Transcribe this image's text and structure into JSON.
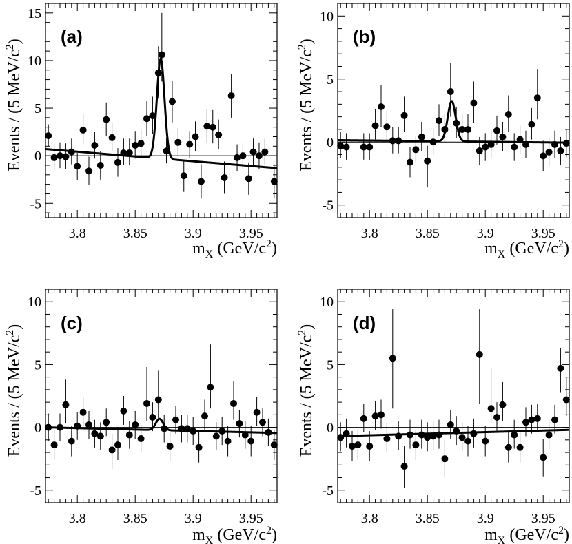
{
  "figure": {
    "ylabel_main": "Events / (5 MeV/c",
    "ylabel_sup": "2",
    "ylabel_close": ")",
    "xlabel_main": "m",
    "xlabel_sub": "X",
    "xlabel_rest": " (GeV/c",
    "xlabel_sup": "2",
    "xlabel_close": ")"
  },
  "chart_data": [
    {
      "type": "scatter",
      "title": "(a)",
      "xlabel": "m_X (GeV/c^2)",
      "ylabel": "Events / (5 MeV/c^2)",
      "xlim": [
        3.7725,
        3.9725
      ],
      "ylim": [
        -6.5,
        16
      ],
      "xticks": [
        "3.8",
        "3.85",
        "3.9",
        "3.95"
      ],
      "yticks": [
        "-5",
        "0",
        "5",
        "10",
        "15"
      ],
      "points": [
        {
          "x": 3.775,
          "y": 2.1,
          "lo": 1.0,
          "hi": 3.3
        },
        {
          "x": 3.78,
          "y": -0.2,
          "lo": -1.5,
          "hi": 1.2
        },
        {
          "x": 3.785,
          "y": 0.0,
          "lo": -1.3,
          "hi": 1.4
        },
        {
          "x": 3.79,
          "y": -0.1,
          "lo": -1.4,
          "hi": 1.3
        },
        {
          "x": 3.795,
          "y": 0.4,
          "lo": -0.9,
          "hi": 1.8
        },
        {
          "x": 3.8,
          "y": -1.1,
          "lo": -2.6,
          "hi": 0.3
        },
        {
          "x": 3.805,
          "y": 2.7,
          "lo": 1.2,
          "hi": 4.4
        },
        {
          "x": 3.81,
          "y": -1.6,
          "lo": -3.1,
          "hi": -0.1
        },
        {
          "x": 3.815,
          "y": 1.1,
          "lo": -0.3,
          "hi": 2.5
        },
        {
          "x": 3.82,
          "y": -1.0,
          "lo": -2.5,
          "hi": 0.5
        },
        {
          "x": 3.825,
          "y": 3.8,
          "lo": 2.1,
          "hi": 5.6
        },
        {
          "x": 3.83,
          "y": 1.9,
          "lo": 0.5,
          "hi": 3.5
        },
        {
          "x": 3.835,
          "y": -0.7,
          "lo": -2.2,
          "hi": 0.8
        },
        {
          "x": 3.84,
          "y": 0.3,
          "lo": -1.0,
          "hi": 1.8
        },
        {
          "x": 3.845,
          "y": 0.3,
          "lo": -1.0,
          "hi": 1.8
        },
        {
          "x": 3.85,
          "y": 1.1,
          "lo": -0.3,
          "hi": 2.6
        },
        {
          "x": 3.855,
          "y": 1.3,
          "lo": -0.1,
          "hi": 2.8
        },
        {
          "x": 3.86,
          "y": 3.9,
          "lo": 2.1,
          "hi": 5.8
        },
        {
          "x": 3.865,
          "y": 4.2,
          "lo": 2.3,
          "hi": 6.2
        },
        {
          "x": 3.87,
          "y": 8.7,
          "lo": 6.0,
          "hi": 11.5
        },
        {
          "x": 3.873,
          "y": 10.6,
          "lo": 7.8,
          "hi": 15.0
        },
        {
          "x": 3.877,
          "y": 0.5,
          "lo": -0.8,
          "hi": 1.9
        },
        {
          "x": 3.882,
          "y": 5.7,
          "lo": 3.5,
          "hi": 7.9
        },
        {
          "x": 3.887,
          "y": 1.4,
          "lo": 0.0,
          "hi": 2.9
        },
        {
          "x": 3.892,
          "y": -2.1,
          "lo": -3.8,
          "hi": -0.4
        },
        {
          "x": 3.897,
          "y": 1.2,
          "lo": -0.2,
          "hi": 2.6
        },
        {
          "x": 3.902,
          "y": 2.0,
          "lo": 0.5,
          "hi": 3.6
        },
        {
          "x": 3.907,
          "y": -2.7,
          "lo": -4.5,
          "hi": -0.9
        },
        {
          "x": 3.912,
          "y": 3.1,
          "lo": 1.4,
          "hi": 4.9
        },
        {
          "x": 3.917,
          "y": 3.0,
          "lo": 1.3,
          "hi": 4.8
        },
        {
          "x": 3.922,
          "y": 2.2,
          "lo": 0.7,
          "hi": 3.8
        },
        {
          "x": 3.927,
          "y": -2.3,
          "lo": -4.0,
          "hi": -0.6
        },
        {
          "x": 3.933,
          "y": 6.3,
          "lo": 4.0,
          "hi": 8.6
        },
        {
          "x": 3.938,
          "y": -0.2,
          "lo": -1.6,
          "hi": 1.2
        },
        {
          "x": 3.943,
          "y": 0.0,
          "lo": -1.4,
          "hi": 1.4
        },
        {
          "x": 3.948,
          "y": -2.4,
          "lo": -4.1,
          "hi": -0.7
        },
        {
          "x": 3.952,
          "y": 0.4,
          "lo": -1.0,
          "hi": 1.8
        },
        {
          "x": 3.957,
          "y": 0.0,
          "lo": -1.4,
          "hi": 1.4
        },
        {
          "x": 3.962,
          "y": 0.4,
          "lo": -1.0,
          "hi": 1.8
        },
        {
          "x": 3.97,
          "y": -2.7,
          "lo": -4.5,
          "hi": -0.9
        }
      ],
      "fit": {
        "bg_a": 0.7,
        "bg_b": -1.3,
        "peak_amp": 10.5,
        "peak_mean": 3.872,
        "peak_sigma": 0.0033
      }
    },
    {
      "type": "scatter",
      "title": "(b)",
      "xlabel": "m_X (GeV/c^2)",
      "ylabel": "Events / (5 MeV/c^2)",
      "xlim": [
        3.7725,
        3.9725
      ],
      "ylim": [
        -6,
        11
      ],
      "xticks": [
        "3.8",
        "3.85",
        "3.9",
        "3.95"
      ],
      "yticks": [
        "-5",
        "0",
        "5",
        "10"
      ],
      "points": [
        {
          "x": 3.775,
          "y": -0.3,
          "lo": -1.3,
          "hi": 0.8
        },
        {
          "x": 3.78,
          "y": -0.4,
          "lo": -1.4,
          "hi": 0.7
        },
        {
          "x": 3.795,
          "y": -0.4,
          "lo": -1.4,
          "hi": 0.7
        },
        {
          "x": 3.8,
          "y": -0.4,
          "lo": -1.4,
          "hi": 0.7
        },
        {
          "x": 3.805,
          "y": 1.3,
          "lo": 0.2,
          "hi": 2.6
        },
        {
          "x": 3.81,
          "y": 2.8,
          "lo": 1.2,
          "hi": 4.5
        },
        {
          "x": 3.815,
          "y": 1.2,
          "lo": 0.1,
          "hi": 2.5
        },
        {
          "x": 3.82,
          "y": 0.1,
          "lo": -0.9,
          "hi": 1.2
        },
        {
          "x": 3.825,
          "y": 0.1,
          "lo": -0.9,
          "hi": 1.2
        },
        {
          "x": 3.83,
          "y": 2.1,
          "lo": 0.8,
          "hi": 3.6
        },
        {
          "x": 3.835,
          "y": -1.6,
          "lo": -2.8,
          "hi": -0.4
        },
        {
          "x": 3.84,
          "y": -0.6,
          "lo": -1.6,
          "hi": 0.5
        },
        {
          "x": 3.845,
          "y": 0.4,
          "lo": -0.7,
          "hi": 1.6
        },
        {
          "x": 3.85,
          "y": -1.5,
          "lo": -3.6,
          "hi": -0.3
        },
        {
          "x": 3.855,
          "y": 0.0,
          "lo": -1.0,
          "hi": 1.1
        },
        {
          "x": 3.86,
          "y": 1.7,
          "lo": 0.5,
          "hi": 3.0
        },
        {
          "x": 3.865,
          "y": 1.0,
          "lo": -0.1,
          "hi": 2.2
        },
        {
          "x": 3.87,
          "y": 4.0,
          "lo": 2.0,
          "hi": 6.3
        },
        {
          "x": 3.875,
          "y": 1.5,
          "lo": 0.3,
          "hi": 2.8
        },
        {
          "x": 3.88,
          "y": 1.0,
          "lo": -0.1,
          "hi": 2.2
        },
        {
          "x": 3.885,
          "y": 1.0,
          "lo": -0.1,
          "hi": 2.2
        },
        {
          "x": 3.89,
          "y": 3.1,
          "lo": 1.5,
          "hi": 4.8
        },
        {
          "x": 3.895,
          "y": -0.7,
          "lo": -1.8,
          "hi": 0.4
        },
        {
          "x": 3.9,
          "y": -0.4,
          "lo": -1.5,
          "hi": 0.7
        },
        {
          "x": 3.905,
          "y": -0.2,
          "lo": -1.3,
          "hi": 0.9
        },
        {
          "x": 3.91,
          "y": 0.9,
          "lo": -0.2,
          "hi": 2.1
        },
        {
          "x": 3.915,
          "y": 0.4,
          "lo": -0.7,
          "hi": 1.6
        },
        {
          "x": 3.92,
          "y": 2.2,
          "lo": 0.8,
          "hi": 3.7
        },
        {
          "x": 3.925,
          "y": -0.4,
          "lo": -1.5,
          "hi": 0.7
        },
        {
          "x": 3.93,
          "y": 0.2,
          "lo": -0.9,
          "hi": 1.3
        },
        {
          "x": 3.935,
          "y": -0.2,
          "lo": -1.3,
          "hi": 0.9
        },
        {
          "x": 3.94,
          "y": 1.4,
          "lo": 0.2,
          "hi": 2.7
        },
        {
          "x": 3.945,
          "y": 3.5,
          "lo": 1.8,
          "hi": 5.8
        },
        {
          "x": 3.95,
          "y": -1.1,
          "lo": -2.3,
          "hi": 0.1
        },
        {
          "x": 3.955,
          "y": -0.8,
          "lo": -1.9,
          "hi": 0.3
        },
        {
          "x": 3.96,
          "y": -0.2,
          "lo": -1.3,
          "hi": 0.9
        },
        {
          "x": 3.965,
          "y": -0.7,
          "lo": -1.8,
          "hi": 0.4
        },
        {
          "x": 3.97,
          "y": -0.1,
          "lo": -1.2,
          "hi": 1.0
        }
      ],
      "fit": {
        "bg_a": 0.15,
        "bg_b": -0.05,
        "peak_amp": 3.2,
        "peak_mean": 3.871,
        "peak_sigma": 0.0034
      }
    },
    {
      "type": "scatter",
      "title": "(c)",
      "xlabel": "m_X (GeV/c^2)",
      "ylabel": "Events / (5 MeV/c^2)",
      "xlim": [
        3.7725,
        3.9725
      ],
      "ylim": [
        -6,
        11
      ],
      "xticks": [
        "3.8",
        "3.85",
        "3.9",
        "3.95"
      ],
      "yticks": [
        "-5",
        "0",
        "5",
        "10"
      ],
      "points": [
        {
          "x": 3.775,
          "y": 0.0,
          "lo": -1.1,
          "hi": 1.1
        },
        {
          "x": 3.78,
          "y": -1.4,
          "lo": -2.6,
          "hi": -0.2
        },
        {
          "x": 3.785,
          "y": 0.0,
          "lo": -1.1,
          "hi": 1.1
        },
        {
          "x": 3.79,
          "y": 1.8,
          "lo": 0.3,
          "hi": 3.8
        },
        {
          "x": 3.795,
          "y": -1.1,
          "lo": -2.3,
          "hi": 0.1
        },
        {
          "x": 3.8,
          "y": 0.1,
          "lo": -1.0,
          "hi": 1.2
        },
        {
          "x": 3.805,
          "y": 1.2,
          "lo": 0.1,
          "hi": 2.4
        },
        {
          "x": 3.81,
          "y": 0.2,
          "lo": -0.9,
          "hi": 1.3
        },
        {
          "x": 3.815,
          "y": -0.5,
          "lo": -1.6,
          "hi": 0.6
        },
        {
          "x": 3.82,
          "y": -0.7,
          "lo": -1.8,
          "hi": 0.4
        },
        {
          "x": 3.825,
          "y": 0.4,
          "lo": -0.7,
          "hi": 1.5
        },
        {
          "x": 3.83,
          "y": -1.8,
          "lo": -3.3,
          "hi": -0.5
        },
        {
          "x": 3.835,
          "y": -1.4,
          "lo": -2.6,
          "hi": -0.2
        },
        {
          "x": 3.84,
          "y": 1.3,
          "lo": 0.2,
          "hi": 2.5
        },
        {
          "x": 3.845,
          "y": -0.6,
          "lo": -1.7,
          "hi": 0.5
        },
        {
          "x": 3.85,
          "y": 0.2,
          "lo": -0.9,
          "hi": 1.3
        },
        {
          "x": 3.855,
          "y": -0.9,
          "lo": -2.0,
          "hi": 0.2
        },
        {
          "x": 3.86,
          "y": 1.9,
          "lo": 0.5,
          "hi": 4.8
        },
        {
          "x": 3.865,
          "y": 0.8,
          "lo": -0.3,
          "hi": 2.0
        },
        {
          "x": 3.87,
          "y": 2.2,
          "lo": 0.7,
          "hi": 4.5
        },
        {
          "x": 3.875,
          "y": -0.1,
          "lo": -1.2,
          "hi": 1.0
        },
        {
          "x": 3.88,
          "y": -1.5,
          "lo": -2.7,
          "hi": -0.3
        },
        {
          "x": 3.885,
          "y": 0.6,
          "lo": -0.5,
          "hi": 1.7
        },
        {
          "x": 3.89,
          "y": -0.1,
          "lo": -1.2,
          "hi": 1.0
        },
        {
          "x": 3.895,
          "y": -0.1,
          "lo": -1.2,
          "hi": 1.0
        },
        {
          "x": 3.9,
          "y": -0.3,
          "lo": -1.4,
          "hi": 0.8
        },
        {
          "x": 3.905,
          "y": -1.6,
          "lo": -2.8,
          "hi": -0.4
        },
        {
          "x": 3.91,
          "y": 0.9,
          "lo": -0.2,
          "hi": 2.2
        },
        {
          "x": 3.915,
          "y": 3.2,
          "lo": 1.5,
          "hi": 6.6
        },
        {
          "x": 3.92,
          "y": -0.7,
          "lo": -1.8,
          "hi": 0.4
        },
        {
          "x": 3.925,
          "y": -0.3,
          "lo": -1.4,
          "hi": 0.8
        },
        {
          "x": 3.93,
          "y": -1.1,
          "lo": -2.3,
          "hi": 0.1
        },
        {
          "x": 3.935,
          "y": 1.9,
          "lo": 0.6,
          "hi": 3.7
        },
        {
          "x": 3.94,
          "y": 0.3,
          "lo": -0.8,
          "hi": 1.4
        },
        {
          "x": 3.945,
          "y": -0.6,
          "lo": -1.7,
          "hi": 0.5
        },
        {
          "x": 3.95,
          "y": -1.1,
          "lo": -2.3,
          "hi": 0.1
        },
        {
          "x": 3.955,
          "y": 1.2,
          "lo": 0.1,
          "hi": 2.4
        },
        {
          "x": 3.96,
          "y": 0.4,
          "lo": -0.7,
          "hi": 1.5
        },
        {
          "x": 3.965,
          "y": -0.4,
          "lo": -1.5,
          "hi": 0.7
        },
        {
          "x": 3.97,
          "y": -1.4,
          "lo": -2.6,
          "hi": -0.2
        }
      ],
      "fit": {
        "bg_a": 0.0,
        "bg_b": -0.45,
        "peak_amp": 0.9,
        "peak_mean": 3.871,
        "peak_sigma": 0.0032
      }
    },
    {
      "type": "scatter",
      "title": "(d)",
      "xlabel": "m_X (GeV/c^2)",
      "ylabel": "Events / (5 MeV/c^2)",
      "xlim": [
        3.7725,
        3.9725
      ],
      "ylim": [
        -6,
        11
      ],
      "xticks": [
        "3.8",
        "3.85",
        "3.9",
        "3.95"
      ],
      "yticks": [
        "-5",
        "0",
        "5",
        "10"
      ],
      "points": [
        {
          "x": 3.775,
          "y": -0.8,
          "lo": -1.9,
          "hi": 0.4
        },
        {
          "x": 3.78,
          "y": -0.5,
          "lo": -1.6,
          "hi": 0.7
        },
        {
          "x": 3.785,
          "y": -1.5,
          "lo": -2.7,
          "hi": -0.3
        },
        {
          "x": 3.79,
          "y": -1.4,
          "lo": -2.6,
          "hi": -0.2
        },
        {
          "x": 3.795,
          "y": 0.7,
          "lo": -0.4,
          "hi": 1.9
        },
        {
          "x": 3.8,
          "y": -1.5,
          "lo": -2.7,
          "hi": -0.3
        },
        {
          "x": 3.805,
          "y": 0.9,
          "lo": -0.2,
          "hi": 2.1
        },
        {
          "x": 3.81,
          "y": 1.0,
          "lo": -0.1,
          "hi": 2.2
        },
        {
          "x": 3.815,
          "y": -0.9,
          "lo": -2.0,
          "hi": 0.3
        },
        {
          "x": 3.82,
          "y": 5.5,
          "lo": 1.5,
          "hi": 9.4
        },
        {
          "x": 3.825,
          "y": -0.7,
          "lo": -1.8,
          "hi": 0.5
        },
        {
          "x": 3.83,
          "y": -3.1,
          "lo": -4.8,
          "hi": -1.5
        },
        {
          "x": 3.835,
          "y": -0.6,
          "lo": -1.7,
          "hi": 0.6
        },
        {
          "x": 3.84,
          "y": -1.4,
          "lo": -2.6,
          "hi": -0.2
        },
        {
          "x": 3.845,
          "y": -0.6,
          "lo": -1.7,
          "hi": 0.6
        },
        {
          "x": 3.85,
          "y": -0.8,
          "lo": -1.9,
          "hi": 0.4
        },
        {
          "x": 3.855,
          "y": -0.7,
          "lo": -1.8,
          "hi": 0.5
        },
        {
          "x": 3.86,
          "y": -0.6,
          "lo": -1.7,
          "hi": 0.6
        },
        {
          "x": 3.865,
          "y": -2.5,
          "lo": -4.0,
          "hi": -1.0
        },
        {
          "x": 3.87,
          "y": 0.2,
          "lo": -0.9,
          "hi": 1.4
        },
        {
          "x": 3.875,
          "y": -0.3,
          "lo": -1.4,
          "hi": 0.9
        },
        {
          "x": 3.88,
          "y": -0.8,
          "lo": -1.9,
          "hi": 0.4
        },
        {
          "x": 3.885,
          "y": -1.1,
          "lo": -2.3,
          "hi": 0.1
        },
        {
          "x": 3.89,
          "y": -0.5,
          "lo": -1.6,
          "hi": 0.7
        },
        {
          "x": 3.895,
          "y": 5.8,
          "lo": 1.9,
          "hi": 9.4
        },
        {
          "x": 3.9,
          "y": -1.1,
          "lo": -2.3,
          "hi": 0.1
        },
        {
          "x": 3.905,
          "y": 1.5,
          "lo": 0.3,
          "hi": 4.7
        },
        {
          "x": 3.91,
          "y": 0.8,
          "lo": -0.3,
          "hi": 2.0
        },
        {
          "x": 3.915,
          "y": 1.8,
          "lo": 0.5,
          "hi": 3.6
        },
        {
          "x": 3.92,
          "y": -1.6,
          "lo": -2.8,
          "hi": -0.4
        },
        {
          "x": 3.925,
          "y": -0.6,
          "lo": -1.7,
          "hi": 0.6
        },
        {
          "x": 3.93,
          "y": -1.6,
          "lo": -2.8,
          "hi": -0.4
        },
        {
          "x": 3.935,
          "y": 0.4,
          "lo": -0.7,
          "hi": 1.6
        },
        {
          "x": 3.94,
          "y": 0.6,
          "lo": -0.5,
          "hi": 1.8
        },
        {
          "x": 3.945,
          "y": 0.7,
          "lo": -0.4,
          "hi": 1.9
        },
        {
          "x": 3.95,
          "y": -2.4,
          "lo": -3.9,
          "hi": -0.9
        },
        {
          "x": 3.955,
          "y": -0.6,
          "lo": -1.7,
          "hi": 0.6
        },
        {
          "x": 3.96,
          "y": 0.6,
          "lo": -0.5,
          "hi": 1.8
        },
        {
          "x": 3.965,
          "y": 4.7,
          "lo": 2.8,
          "hi": 6.3
        },
        {
          "x": 3.97,
          "y": 2.2,
          "lo": 0.9,
          "hi": 4.0
        }
      ],
      "fit": {
        "bg_a": -0.7,
        "bg_b": -0.2,
        "peak_amp": 0.0,
        "peak_mean": 3.871,
        "peak_sigma": 0.0032
      }
    }
  ]
}
